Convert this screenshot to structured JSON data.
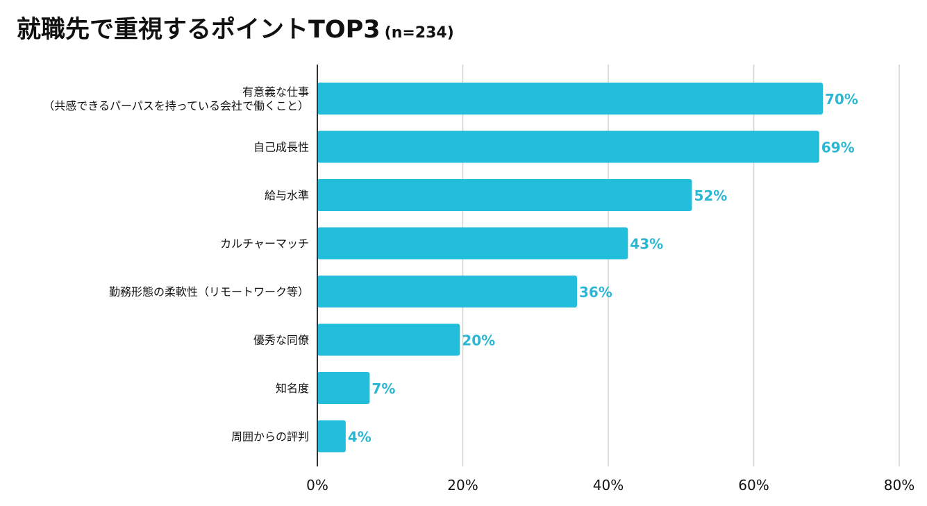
{
  "title": {
    "main": "就職先で重視するポイントTOP3",
    "sample": "(n=234)"
  },
  "colors": {
    "bar": "#22bedb",
    "label": "#2bb7d4",
    "grid": "#d2d2d2",
    "axis": "#333333",
    "text": "#111111"
  },
  "chart_data": {
    "type": "bar",
    "orientation": "horizontal",
    "title": "就職先で重視するポイントTOP3 (n=234)",
    "categories": [
      [
        "有意義な仕事",
        "（共感できるパーパスを持っている会社で働くこと）"
      ],
      [
        "自己成長性"
      ],
      [
        "給与水準"
      ],
      [
        "カルチャーマッチ"
      ],
      [
        "勤務形態の柔軟性（リモートワーク等）"
      ],
      [
        "優秀な同僚"
      ],
      [
        "知名度"
      ],
      [
        "周囲からの評判"
      ]
    ],
    "values": [
      69.5,
      69,
      51.5,
      42.7,
      35.7,
      19.6,
      7.2,
      3.9
    ],
    "data_labels": [
      "70%",
      "69%",
      "52%",
      "43%",
      "36%",
      "20%",
      "7%",
      "4%"
    ],
    "xlim": [
      0,
      80
    ],
    "xticks": [
      0,
      20,
      40,
      60,
      80
    ],
    "xtick_labels": [
      "0%",
      "20%",
      "40%",
      "60%",
      "80%"
    ],
    "grid": true,
    "legend": "none",
    "xlabel": "",
    "ylabel": ""
  }
}
